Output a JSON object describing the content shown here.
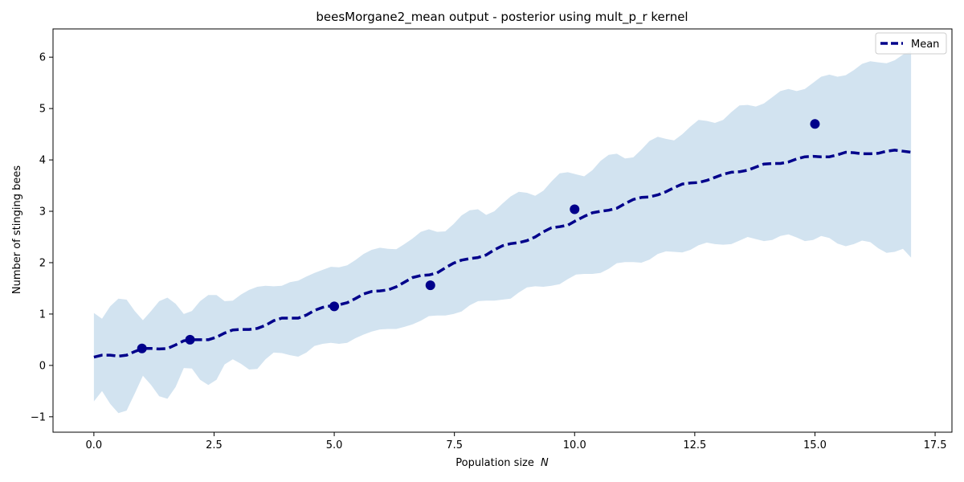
{
  "chart_data": {
    "type": "line",
    "title": "beesMorgane2_mean output - posterior using mult_p_r kernel",
    "xlabel": "Population size",
    "xlabel_symbol": "N",
    "ylabel": "Number of stinging bees",
    "xlim": [
      -0.85,
      17.85
    ],
    "ylim": [
      -1.3,
      6.55
    ],
    "xticks": [
      0.0,
      2.5,
      5.0,
      7.5,
      10.0,
      12.5,
      15.0,
      17.5
    ],
    "xtick_labels": [
      "0.0",
      "2.5",
      "5.0",
      "7.5",
      "10.0",
      "12.5",
      "15.0",
      "17.5"
    ],
    "yticks": [
      -1,
      0,
      1,
      2,
      3,
      4,
      5,
      6
    ],
    "ytick_labels": [
      "−1",
      "0",
      "1",
      "2",
      "3",
      "4",
      "5",
      "6"
    ],
    "legend": {
      "position": "top-right",
      "entries": [
        "Mean"
      ]
    },
    "grid": false,
    "colors": {
      "mean": "#00008b",
      "band": "#d2e3f0",
      "points": "#00008b"
    },
    "x": [
      0.0,
      0.17,
      0.34,
      0.51,
      0.68,
      0.85,
      1.02,
      1.19,
      1.36,
      1.53,
      1.7,
      1.87,
      2.04,
      2.21,
      2.38,
      2.55,
      2.72,
      2.89,
      3.06,
      3.23,
      3.4,
      3.57,
      3.74,
      3.91,
      4.08,
      4.25,
      4.42,
      4.59,
      4.76,
      4.93,
      5.1,
      5.27,
      5.44,
      5.61,
      5.78,
      5.95,
      6.12,
      6.29,
      6.46,
      6.63,
      6.8,
      6.97,
      7.14,
      7.31,
      7.48,
      7.65,
      7.82,
      7.99,
      8.16,
      8.33,
      8.5,
      8.67,
      8.84,
      9.01,
      9.18,
      9.35,
      9.52,
      9.69,
      9.86,
      10.03,
      10.2,
      10.37,
      10.54,
      10.71,
      10.88,
      11.05,
      11.22,
      11.39,
      11.56,
      11.73,
      11.9,
      12.07,
      12.24,
      12.41,
      12.58,
      12.75,
      12.92,
      13.09,
      13.26,
      13.43,
      13.6,
      13.77,
      13.94,
      14.11,
      14.28,
      14.45,
      14.62,
      14.79,
      14.96,
      15.13,
      15.3,
      15.47,
      15.64,
      15.81,
      15.98,
      16.15,
      16.32,
      16.49,
      16.66,
      16.83,
      17.0
    ],
    "series": [
      {
        "name": "Mean",
        "style": "dashed",
        "values": [
          0.16,
          0.2,
          0.2,
          0.18,
          0.2,
          0.27,
          0.33,
          0.33,
          0.32,
          0.33,
          0.4,
          0.48,
          0.5,
          0.5,
          0.5,
          0.55,
          0.63,
          0.69,
          0.7,
          0.7,
          0.72,
          0.78,
          0.87,
          0.92,
          0.92,
          0.92,
          0.98,
          1.07,
          1.13,
          1.16,
          1.18,
          1.22,
          1.3,
          1.39,
          1.44,
          1.45,
          1.47,
          1.53,
          1.62,
          1.71,
          1.75,
          1.76,
          1.8,
          1.9,
          1.99,
          2.05,
          2.08,
          2.1,
          2.15,
          2.25,
          2.33,
          2.37,
          2.39,
          2.43,
          2.5,
          2.6,
          2.68,
          2.7,
          2.73,
          2.82,
          2.9,
          2.97,
          3.0,
          3.02,
          3.06,
          3.15,
          3.23,
          3.27,
          3.28,
          3.32,
          3.38,
          3.46,
          3.53,
          3.55,
          3.56,
          3.6,
          3.66,
          3.72,
          3.76,
          3.77,
          3.8,
          3.86,
          3.92,
          3.93,
          3.93,
          3.96,
          4.02,
          4.06,
          4.07,
          4.06,
          4.06,
          4.1,
          4.15,
          4.14,
          4.12,
          4.12,
          4.13,
          4.17,
          4.19,
          4.17,
          4.15
        ]
      },
      {
        "name": "band_upper",
        "values": [
          1.02,
          0.91,
          1.15,
          1.3,
          1.28,
          1.06,
          0.88,
          1.06,
          1.25,
          1.32,
          1.2,
          1.0,
          1.06,
          1.25,
          1.37,
          1.37,
          1.25,
          1.26,
          1.38,
          1.47,
          1.53,
          1.55,
          1.54,
          1.55,
          1.62,
          1.65,
          1.73,
          1.8,
          1.86,
          1.92,
          1.91,
          1.95,
          2.05,
          2.17,
          2.25,
          2.29,
          2.27,
          2.26,
          2.36,
          2.47,
          2.6,
          2.65,
          2.6,
          2.61,
          2.75,
          2.92,
          3.02,
          3.04,
          2.93,
          3.0,
          3.15,
          3.29,
          3.38,
          3.36,
          3.3,
          3.4,
          3.58,
          3.74,
          3.76,
          3.72,
          3.68,
          3.8,
          3.98,
          4.1,
          4.12,
          4.03,
          4.05,
          4.2,
          4.37,
          4.45,
          4.41,
          4.38,
          4.5,
          4.65,
          4.78,
          4.76,
          4.72,
          4.78,
          4.93,
          5.06,
          5.07,
          5.04,
          5.1,
          5.22,
          5.34,
          5.38,
          5.34,
          5.38,
          5.5,
          5.62,
          5.66,
          5.62,
          5.65,
          5.75,
          5.87,
          5.92,
          5.9,
          5.88,
          5.94,
          6.05,
          6.12
        ]
      },
      {
        "name": "band_lower",
        "values": [
          -0.7,
          -0.5,
          -0.75,
          -0.93,
          -0.88,
          -0.55,
          -0.2,
          -0.38,
          -0.6,
          -0.65,
          -0.42,
          -0.05,
          -0.06,
          -0.28,
          -0.38,
          -0.28,
          0.02,
          0.12,
          0.03,
          -0.08,
          -0.07,
          0.12,
          0.25,
          0.24,
          0.2,
          0.17,
          0.25,
          0.38,
          0.42,
          0.44,
          0.42,
          0.44,
          0.53,
          0.6,
          0.66,
          0.7,
          0.71,
          0.71,
          0.75,
          0.8,
          0.87,
          0.96,
          0.97,
          0.97,
          1.0,
          1.05,
          1.17,
          1.25,
          1.26,
          1.26,
          1.28,
          1.3,
          1.42,
          1.52,
          1.54,
          1.53,
          1.55,
          1.58,
          1.68,
          1.77,
          1.78,
          1.78,
          1.8,
          1.88,
          1.99,
          2.01,
          2.01,
          2.0,
          2.06,
          2.17,
          2.22,
          2.21,
          2.2,
          2.25,
          2.34,
          2.39,
          2.36,
          2.35,
          2.36,
          2.43,
          2.5,
          2.46,
          2.42,
          2.44,
          2.52,
          2.55,
          2.49,
          2.42,
          2.44,
          2.52,
          2.48,
          2.37,
          2.32,
          2.36,
          2.43,
          2.4,
          2.28,
          2.19,
          2.21,
          2.27,
          2.1
        ]
      }
    ],
    "points": {
      "x": [
        1.0,
        2.0,
        5.0,
        7.0,
        10.0,
        15.0
      ],
      "y": [
        0.33,
        0.5,
        1.15,
        1.56,
        3.04,
        4.7
      ]
    }
  }
}
